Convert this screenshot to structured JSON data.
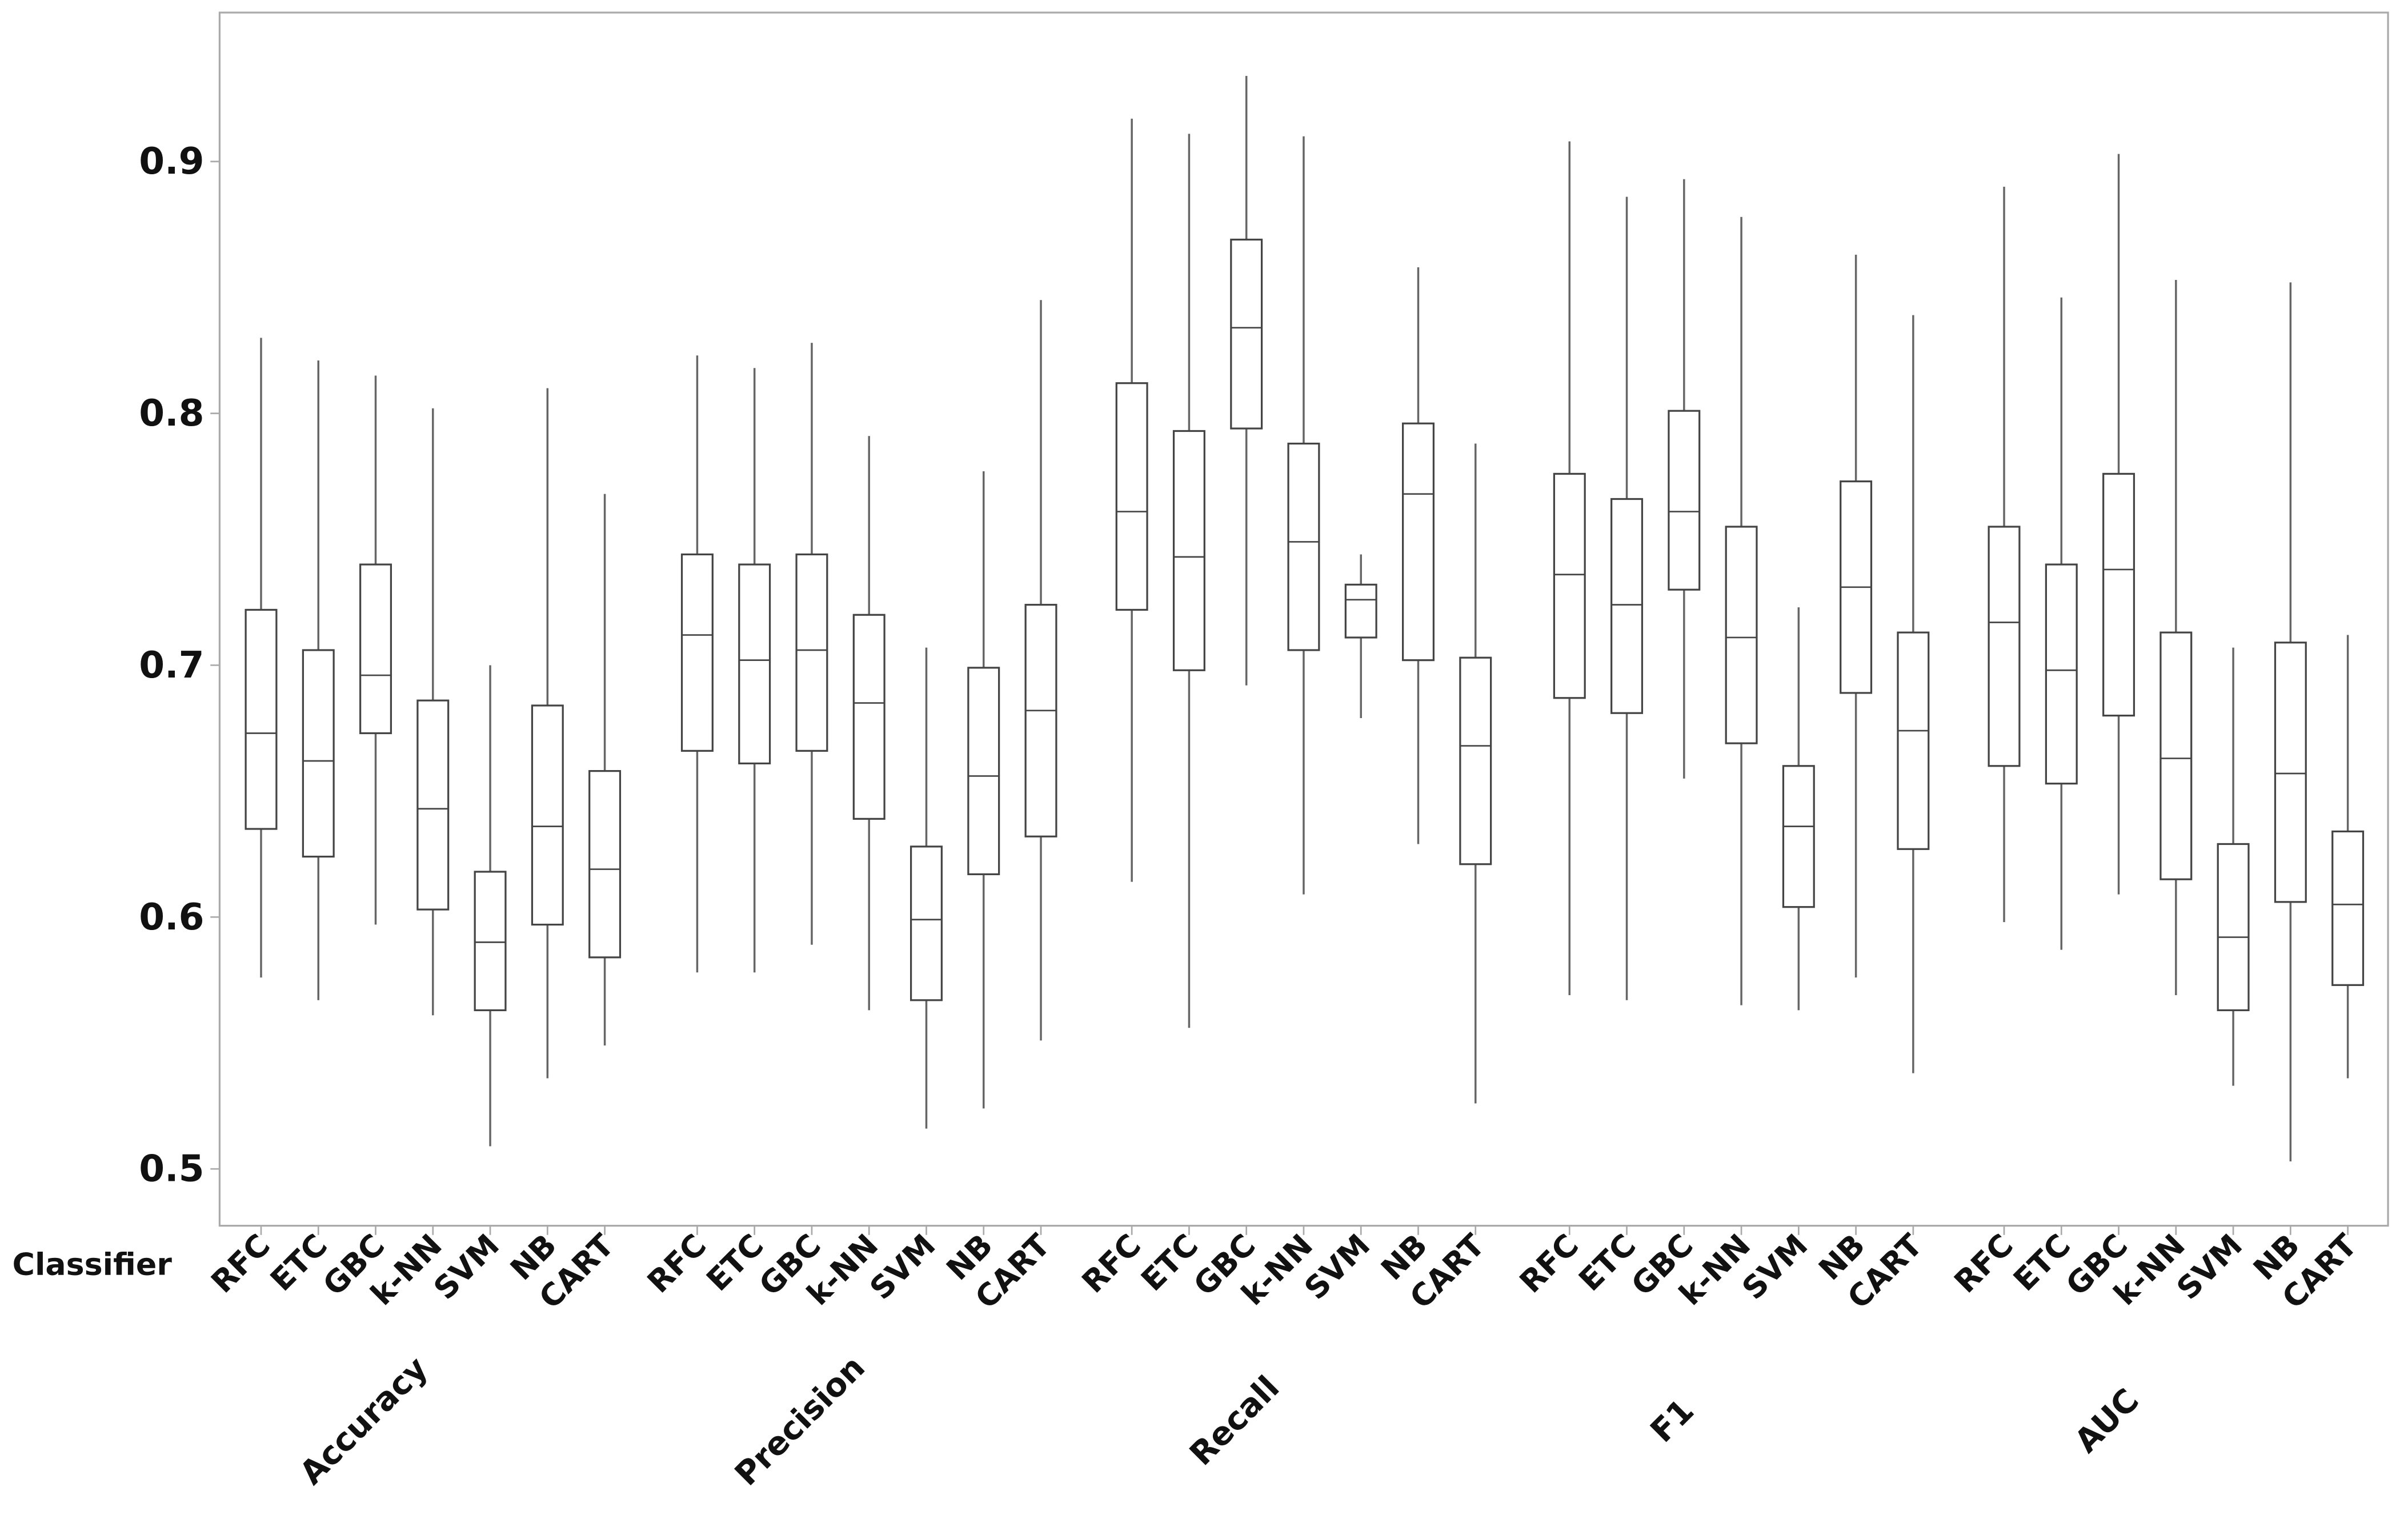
{
  "chart_data": {
    "type": "boxplot",
    "xlabel": "Classifier",
    "ylim": [
      0.47,
      0.96
    ],
    "yticks": [
      0.5,
      0.6,
      0.7,
      0.8,
      0.9
    ],
    "ytick_labels": [
      "0.5",
      "0.6",
      "0.7",
      "0.8",
      "0.9"
    ],
    "grid": false,
    "colors": {
      "box": "#444444",
      "whisker": "#666666",
      "frame": "#aaaaaa"
    },
    "classifiers": [
      "RFC",
      "ETC",
      "GBC",
      "k-NN",
      "SVM",
      "NB",
      "CART"
    ],
    "stat_order": [
      "min",
      "q1",
      "median",
      "q3",
      "max"
    ],
    "groups": [
      {
        "name": "Accuracy",
        "boxes": [
          [
            0.576,
            0.635,
            0.673,
            0.722,
            0.83
          ],
          [
            0.567,
            0.624,
            0.662,
            0.706,
            0.821
          ],
          [
            0.597,
            0.673,
            0.696,
            0.74,
            0.815
          ],
          [
            0.561,
            0.603,
            0.643,
            0.686,
            0.802
          ],
          [
            0.509,
            0.563,
            0.59,
            0.618,
            0.7
          ],
          [
            0.536,
            0.597,
            0.636,
            0.684,
            0.81
          ],
          [
            0.549,
            0.584,
            0.619,
            0.658,
            0.768
          ]
        ]
      },
      {
        "name": "Precision",
        "boxes": [
          [
            0.578,
            0.666,
            0.712,
            0.744,
            0.823
          ],
          [
            0.578,
            0.661,
            0.702,
            0.74,
            0.818
          ],
          [
            0.589,
            0.666,
            0.706,
            0.744,
            0.828
          ],
          [
            0.563,
            0.639,
            0.685,
            0.72,
            0.791
          ],
          [
            0.516,
            0.567,
            0.599,
            0.628,
            0.707
          ],
          [
            0.524,
            0.617,
            0.656,
            0.699,
            0.777
          ],
          [
            0.551,
            0.632,
            0.682,
            0.724,
            0.845
          ]
        ]
      },
      {
        "name": "Recall",
        "boxes": [
          [
            0.614,
            0.722,
            0.761,
            0.812,
            0.917
          ],
          [
            0.556,
            0.698,
            0.743,
            0.793,
            0.911
          ],
          [
            0.692,
            0.794,
            0.834,
            0.869,
            0.934
          ],
          [
            0.609,
            0.706,
            0.749,
            0.788,
            0.91
          ],
          [
            0.679,
            0.711,
            0.726,
            0.732,
            0.744
          ],
          [
            0.629,
            0.702,
            0.768,
            0.796,
            0.858
          ],
          [
            0.526,
            0.621,
            0.668,
            0.703,
            0.788
          ]
        ]
      },
      {
        "name": "F1",
        "boxes": [
          [
            0.569,
            0.687,
            0.736,
            0.776,
            0.908
          ],
          [
            0.567,
            0.681,
            0.724,
            0.766,
            0.886
          ],
          [
            0.655,
            0.73,
            0.761,
            0.801,
            0.893
          ],
          [
            0.565,
            0.669,
            0.711,
            0.755,
            0.878
          ],
          [
            0.563,
            0.604,
            0.636,
            0.66,
            0.723
          ],
          [
            0.576,
            0.689,
            0.731,
            0.773,
            0.863
          ],
          [
            0.538,
            0.627,
            0.674,
            0.713,
            0.839
          ]
        ]
      },
      {
        "name": "AUC",
        "boxes": [
          [
            0.598,
            0.66,
            0.717,
            0.755,
            0.89
          ],
          [
            0.587,
            0.653,
            0.698,
            0.74,
            0.846
          ],
          [
            0.609,
            0.68,
            0.738,
            0.776,
            0.903
          ],
          [
            0.569,
            0.615,
            0.663,
            0.713,
            0.853
          ],
          [
            0.533,
            0.563,
            0.592,
            0.629,
            0.707
          ],
          [
            0.503,
            0.606,
            0.657,
            0.709,
            0.852
          ],
          [
            0.536,
            0.573,
            0.605,
            0.634,
            0.712
          ]
        ]
      }
    ]
  }
}
